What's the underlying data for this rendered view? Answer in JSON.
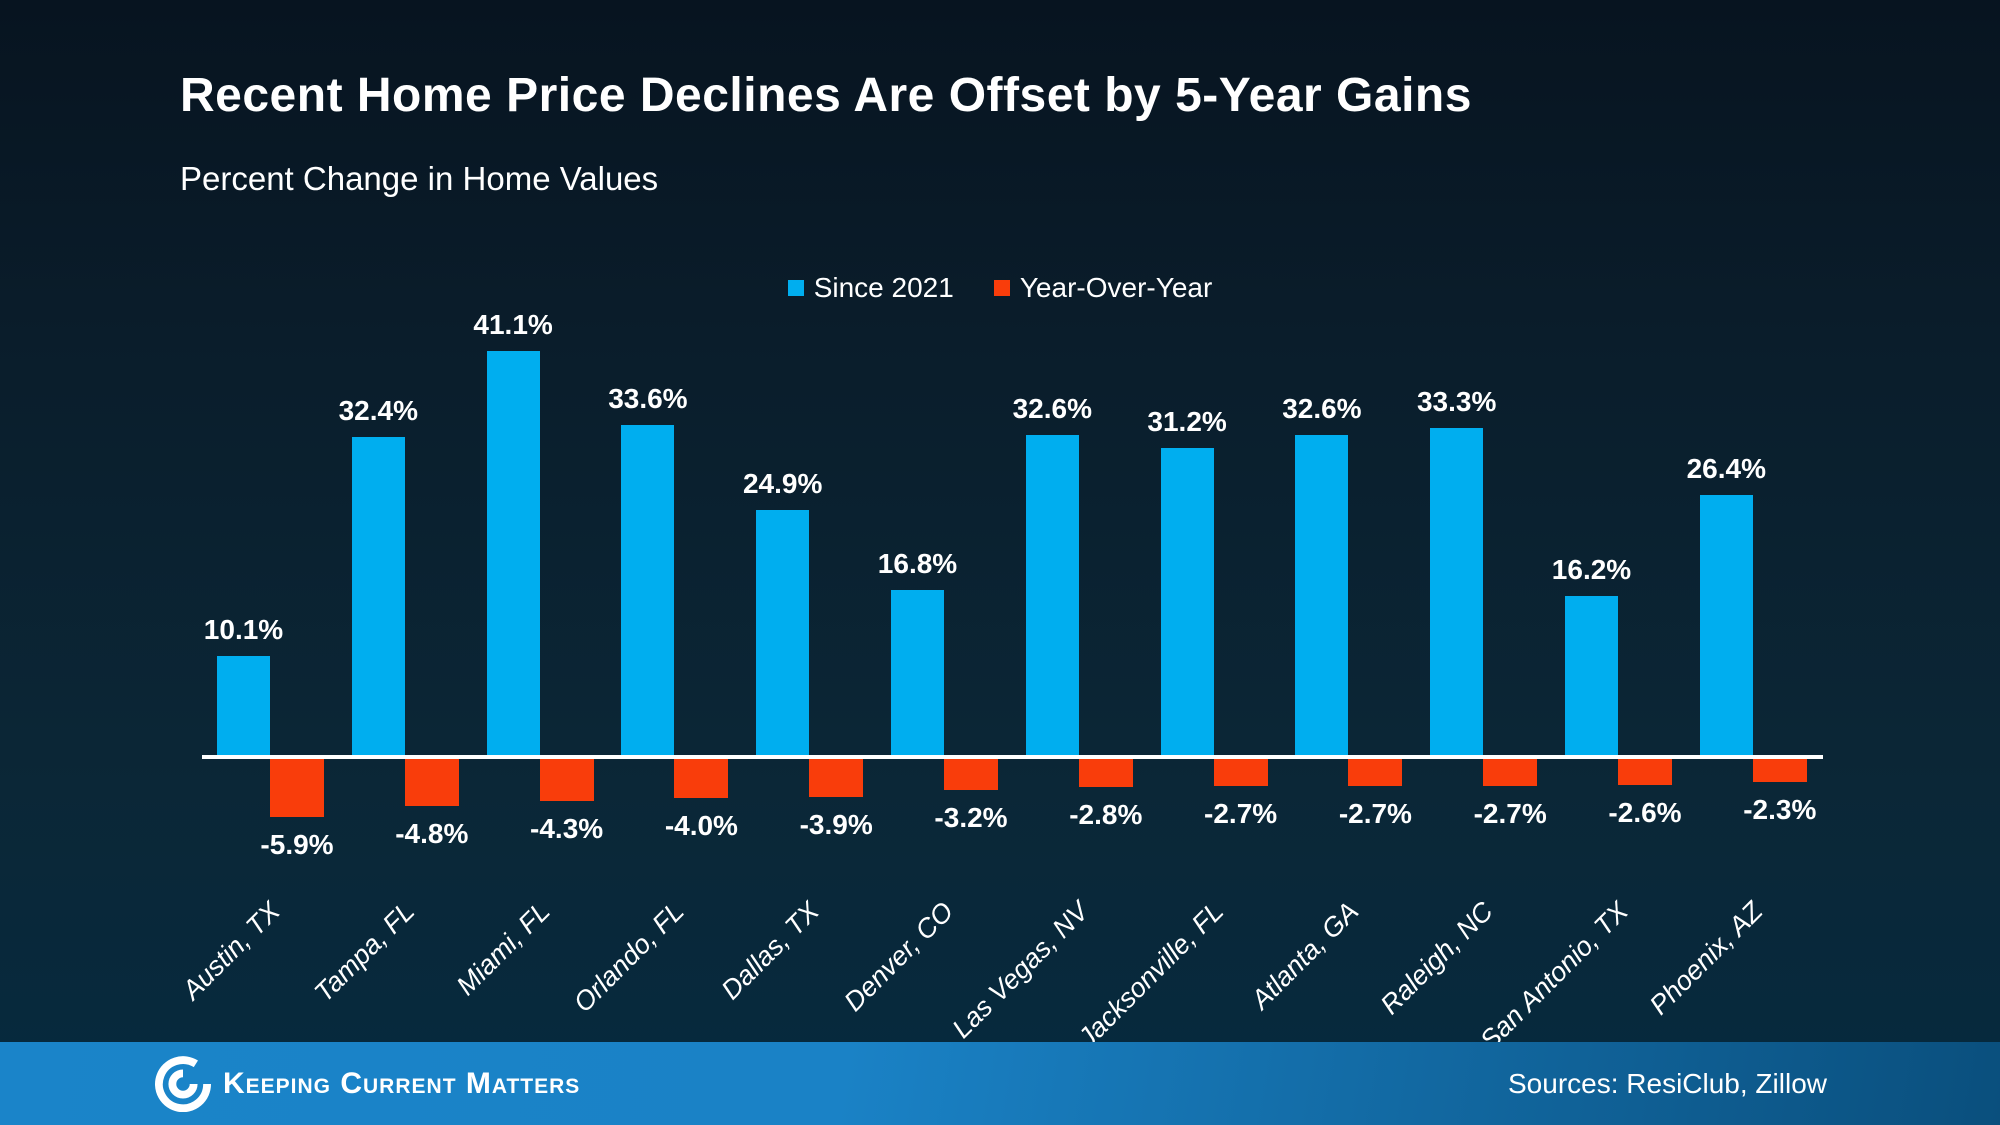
{
  "title": "Recent Home Price Declines Are Offset by 5-Year Gains",
  "subtitle": "Percent Change in Home Values",
  "legend": [
    {
      "label": "Since 2021",
      "color": "#00AEEF"
    },
    {
      "label": "Year-Over-Year",
      "color": "#F93D0B"
    }
  ],
  "chart_data": {
    "type": "bar",
    "title": "Recent Home Price Declines Are Offset by 5-Year Gains",
    "subtitle": "Percent Change in Home Values",
    "categories": [
      "Austin, TX",
      "Tampa, FL",
      "Miami, FL",
      "Orlando, FL",
      "Dallas, TX",
      "Denver, CO",
      "Las Vegas, NV",
      "Jacksonville, FL",
      "Atlanta, GA",
      "Raleigh, NC",
      "San Antonio, TX",
      "Phoenix, AZ"
    ],
    "series": [
      {
        "name": "Since 2021",
        "color": "#00AEEF",
        "values": [
          10.1,
          32.4,
          41.1,
          33.6,
          24.9,
          16.8,
          32.6,
          31.2,
          32.6,
          33.3,
          16.2,
          26.4
        ]
      },
      {
        "name": "Year-Over-Year",
        "color": "#F93D0B",
        "values": [
          -5.9,
          -4.8,
          -4.3,
          -4.0,
          -3.9,
          -3.2,
          -2.8,
          -2.7,
          -2.7,
          -2.7,
          -2.6,
          -2.3
        ]
      }
    ],
    "value_label_format": "{value}%",
    "grid": false,
    "legend_position": "top-center",
    "baseline": 0
  },
  "colors": {
    "background_top": "#071420",
    "background_bottom": "#052a3f",
    "bar_positive": "#00AEEF",
    "bar_negative": "#F93D0B",
    "axis_line": "#FFFFFF",
    "footer_left": "#1A84C9",
    "footer_right": "#0A4F7D"
  },
  "footer": {
    "brand": "Keeping Current Matters",
    "sources": "Sources: ResiClub, Zillow"
  }
}
